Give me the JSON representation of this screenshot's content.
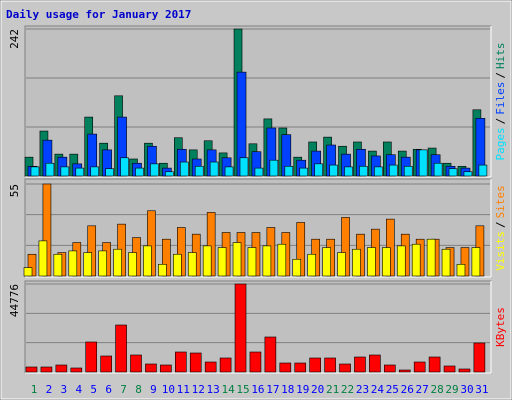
{
  "title": "Daily usage for January 2017",
  "chart_data": [
    {
      "type": "bar",
      "ylim": [
        0,
        242
      ],
      "yticks": [
        242
      ],
      "grid_divisions": 3,
      "legend_separator": "/",
      "series": [
        {
          "name": "Hits",
          "color": "#00805c",
          "values": [
            31,
            74,
            36,
            36,
            97,
            54,
            132,
            28,
            54,
            21,
            63,
            43,
            58,
            38,
            242,
            53,
            94,
            79,
            31,
            56,
            64,
            49,
            56,
            41,
            56,
            41,
            44,
            46,
            21,
            16,
            109
          ]
        },
        {
          "name": "Files",
          "color": "#0040ff",
          "values": [
            16,
            59,
            31,
            20,
            69,
            43,
            97,
            21,
            49,
            13,
            44,
            28,
            43,
            30,
            171,
            40,
            79,
            68,
            26,
            41,
            51,
            36,
            44,
            33,
            35,
            31,
            43,
            35,
            16,
            13,
            95
          ]
        },
        {
          "name": "Pages",
          "color": "#00e0ff",
          "values": [
            15,
            21,
            15,
            13,
            15,
            12,
            30,
            13,
            20,
            7,
            23,
            16,
            23,
            15,
            30,
            13,
            26,
            16,
            13,
            20,
            18,
            15,
            16,
            15,
            18,
            16,
            43,
            21,
            12,
            7,
            18
          ]
        }
      ]
    },
    {
      "type": "bar",
      "ylim": [
        0,
        55
      ],
      "yticks": [
        55
      ],
      "grid_divisions": 3,
      "legend_separator": "/",
      "series": [
        {
          "name": "Sites",
          "color": "#ff8000",
          "values": [
            13,
            55,
            14,
            20,
            30,
            20,
            31,
            23,
            39,
            22,
            29,
            25,
            38,
            26,
            26,
            26,
            29,
            26,
            32,
            22,
            22,
            35,
            25,
            28,
            34,
            25,
            22,
            22,
            17,
            17,
            30
          ]
        },
        {
          "name": "Visits",
          "color": "#ffff00",
          "values": [
            5,
            21,
            13,
            15,
            14,
            15,
            16,
            14,
            18,
            7,
            13,
            14,
            18,
            17,
            20,
            17,
            18,
            19,
            10,
            13,
            17,
            14,
            16,
            17,
            17,
            18,
            19,
            22,
            16,
            7,
            17
          ]
        }
      ]
    },
    {
      "type": "bar",
      "ylim": [
        0,
        44776
      ],
      "yticks": [
        44776
      ],
      "grid_divisions": 3,
      "categories": [
        "1",
        "2",
        "3",
        "4",
        "5",
        "6",
        "7",
        "8",
        "9",
        "10",
        "11",
        "12",
        "13",
        "14",
        "15",
        "16",
        "17",
        "18",
        "19",
        "20",
        "21",
        "22",
        "23",
        "24",
        "25",
        "26",
        "27",
        "28",
        "29",
        "30",
        "31"
      ],
      "category_colors": [
        "#008040",
        "#0000ff",
        "#0000ff",
        "#0000ff",
        "#0000ff",
        "#0000ff",
        "#008040",
        "#008040",
        "#0000ff",
        "#0000ff",
        "#0000ff",
        "#0000ff",
        "#0000ff",
        "#008040",
        "#008040",
        "#0000ff",
        "#0000ff",
        "#0000ff",
        "#0000ff",
        "#0000ff",
        "#008040",
        "#008040",
        "#0000ff",
        "#0000ff",
        "#0000ff",
        "#0000ff",
        "#0000ff",
        "#008040",
        "#008040",
        "#0000ff",
        "#0000ff"
      ],
      "series": [
        {
          "name": "KBytes",
          "color": "#ff0000",
          "values": [
            2544,
            2544,
            3562,
            2035,
            15264,
            8141,
            23914,
            8650,
            4070,
            3562,
            10176,
            9667,
            5088,
            7123,
            44776,
            10176,
            17808,
            4579,
            4579,
            7123,
            7123,
            4070,
            7632,
            8650,
            3562,
            1018,
            5088,
            7632,
            3053,
            1526,
            14755
          ]
        }
      ]
    }
  ]
}
